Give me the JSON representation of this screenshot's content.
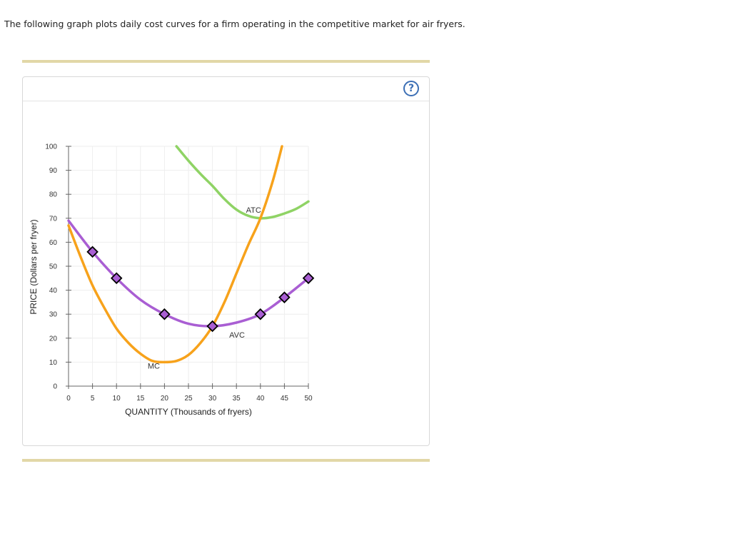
{
  "question": {
    "intro": "The following graph plots daily cost curves for a firm operating in the competitive market for air fryers."
  },
  "help_button": {
    "label": "?",
    "icon": "question-mark-icon",
    "color": "#3c6fb5"
  },
  "chart_data": {
    "type": "line",
    "xlabel": "QUANTITY (Thousands of fryers)",
    "ylabel": "PRICE (Dollars per fryer)",
    "xlim": [
      0,
      50
    ],
    "ylim": [
      0,
      100
    ],
    "xticks": [
      0,
      5,
      10,
      15,
      20,
      25,
      30,
      35,
      40,
      45,
      50
    ],
    "yticks": [
      0,
      10,
      20,
      30,
      40,
      50,
      60,
      70,
      80,
      90,
      100
    ],
    "grid": true,
    "series": [
      {
        "name": "ATC",
        "color": "#8fd365",
        "points": [
          [
            22.5,
            100
          ],
          [
            25,
            94
          ],
          [
            27.5,
            88.5
          ],
          [
            30,
            83.5
          ],
          [
            32.5,
            78
          ],
          [
            35,
            73.6
          ],
          [
            37.5,
            71
          ],
          [
            40,
            70
          ],
          [
            42.5,
            70.5
          ],
          [
            45,
            72
          ],
          [
            47.5,
            74
          ],
          [
            50,
            77
          ]
        ]
      },
      {
        "name": "MC",
        "color": "#f7a21b",
        "points": [
          [
            0,
            67
          ],
          [
            2.5,
            54
          ],
          [
            5,
            42
          ],
          [
            7.5,
            32.5
          ],
          [
            10,
            24
          ],
          [
            12.5,
            18
          ],
          [
            15,
            13.5
          ],
          [
            17.5,
            10.5
          ],
          [
            20,
            10
          ],
          [
            22.5,
            10.5
          ],
          [
            25,
            13
          ],
          [
            27.5,
            18
          ],
          [
            30,
            25
          ],
          [
            32.5,
            35
          ],
          [
            35,
            47
          ],
          [
            37.5,
            59
          ],
          [
            40,
            70
          ],
          [
            42.5,
            85
          ],
          [
            44.5,
            100
          ]
        ]
      },
      {
        "name": "AVC",
        "color": "#a95ed3",
        "points": [
          [
            0,
            69
          ],
          [
            5,
            56
          ],
          [
            10,
            45
          ],
          [
            15,
            36
          ],
          [
            20,
            30
          ],
          [
            25,
            26
          ],
          [
            30,
            25
          ],
          [
            35,
            26.5
          ],
          [
            40,
            30
          ],
          [
            45,
            37
          ],
          [
            50,
            45
          ]
        ],
        "markers": [
          [
            5,
            56
          ],
          [
            10,
            45
          ],
          [
            20,
            30
          ],
          [
            30,
            25
          ],
          [
            40,
            30
          ],
          [
            45,
            37
          ],
          [
            50,
            45
          ]
        ],
        "marker_color": "#a95ed3"
      }
    ],
    "annotations": [
      {
        "text": "ATC",
        "x": 37,
        "y": 73.5
      },
      {
        "text": "AVC",
        "x": 33.5,
        "y": 21.5
      },
      {
        "text": "MC",
        "x": 16.5,
        "y": 8.5
      }
    ]
  }
}
